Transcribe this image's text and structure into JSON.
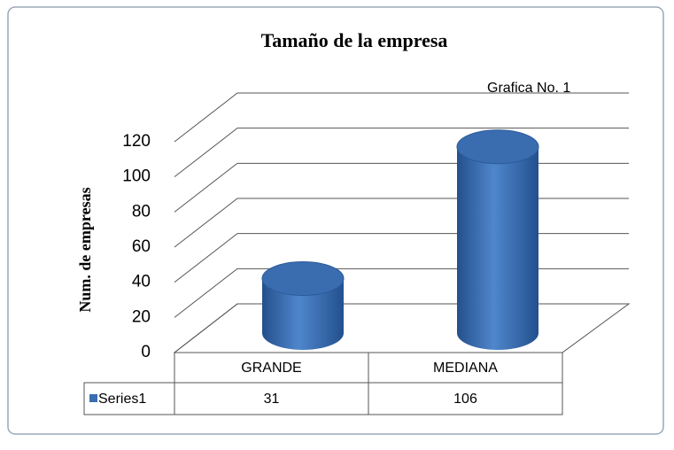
{
  "chart_data": {
    "type": "bar3d",
    "title": "Tamaño de la empresa",
    "annotation": "Grafica No. 1",
    "ylabel": "Num. de empresas",
    "categories": [
      "GRANDE",
      "MEDIANA"
    ],
    "series": [
      {
        "name": "Series1",
        "color": "#3a6cb0",
        "values": [
          31,
          106
        ]
      }
    ],
    "ylim": [
      0,
      120
    ],
    "yticks": [
      0,
      20,
      40,
      60,
      80,
      100,
      120
    ],
    "grid": true,
    "data_table": true
  }
}
